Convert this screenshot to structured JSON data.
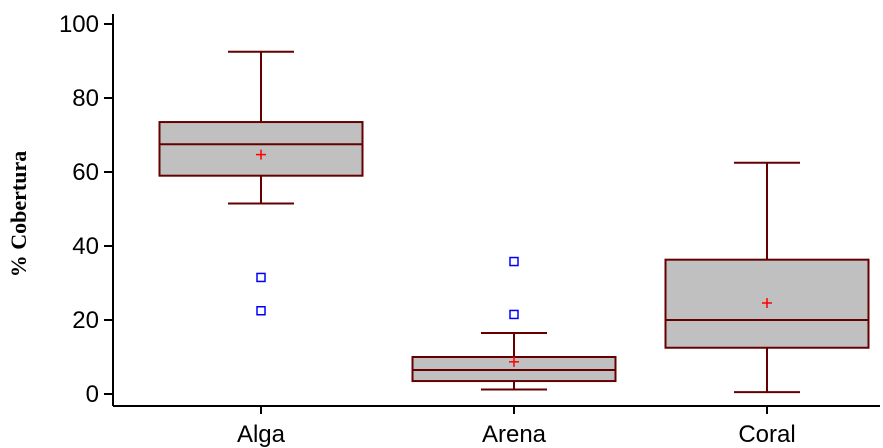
{
  "chart_data": {
    "type": "boxplot",
    "title": "",
    "xlabel": "",
    "ylabel": "% Cobertura",
    "ylim": [
      0,
      100
    ],
    "yticks": [
      0,
      20,
      40,
      60,
      80,
      100
    ],
    "grid": false,
    "categories": [
      "Alga",
      "Arena",
      "Coral"
    ],
    "boxes": [
      {
        "category": "Alga",
        "whisker_low": 51.5,
        "q1": 59,
        "median": 67.5,
        "q3": 73.5,
        "whisker_high": 92.5,
        "mean": 64.7,
        "outliers": [
          31.5,
          22.5
        ]
      },
      {
        "category": "Arena",
        "whisker_low": 1.2,
        "q1": 3.5,
        "median": 6.5,
        "q3": 10,
        "whisker_high": 16.5,
        "mean": 8.7,
        "outliers": [
          35.8,
          21.5
        ]
      },
      {
        "category": "Coral",
        "whisker_low": 0.5,
        "q1": 12.5,
        "median": 20,
        "q3": 36.3,
        "whisker_high": 62.5,
        "mean": 24.6,
        "outliers": []
      }
    ],
    "colors": {
      "box_fill": "#c0c0c0",
      "box_stroke": "#660000",
      "mean_marker": "#ff0000",
      "outlier": "#0000ff",
      "axis": "#000000"
    }
  }
}
